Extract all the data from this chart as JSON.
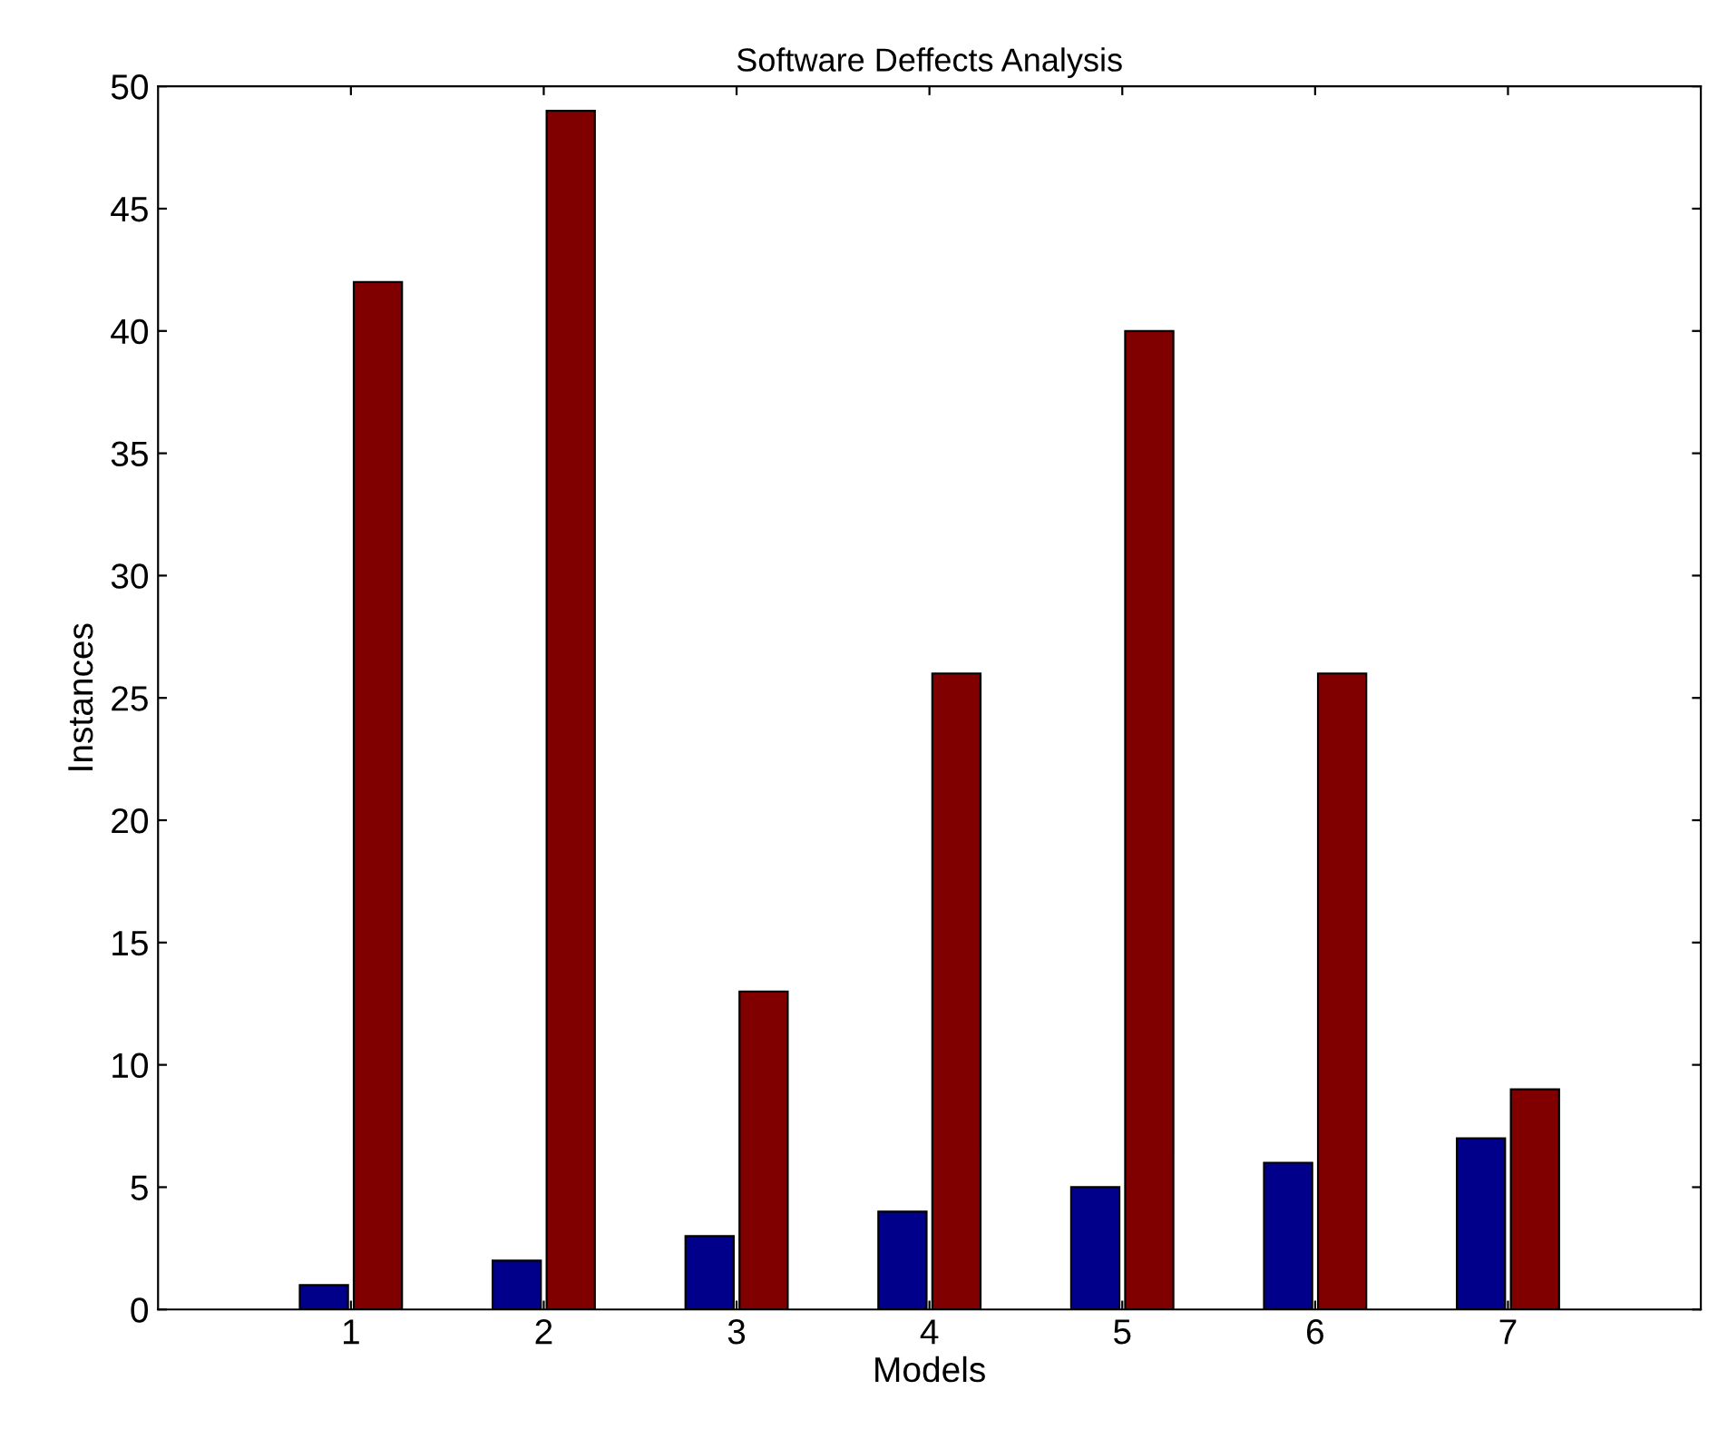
{
  "chart_data": {
    "type": "bar",
    "title": "Software Deffects Analysis",
    "xlabel": "Models",
    "ylabel": "Instances",
    "categories": [
      "1",
      "2",
      "3",
      "4",
      "5",
      "6",
      "7"
    ],
    "series": [
      {
        "color": "#00008b",
        "values": [
          1,
          2,
          3,
          4,
          5,
          6,
          7
        ]
      },
      {
        "color": "#800000",
        "values": [
          42,
          49,
          13,
          26,
          40,
          26,
          9
        ]
      }
    ],
    "ylim": [
      0,
      50
    ],
    "yticks": [
      0,
      5,
      10,
      15,
      20,
      25,
      30,
      35,
      40,
      45,
      50
    ],
    "grid": false
  }
}
